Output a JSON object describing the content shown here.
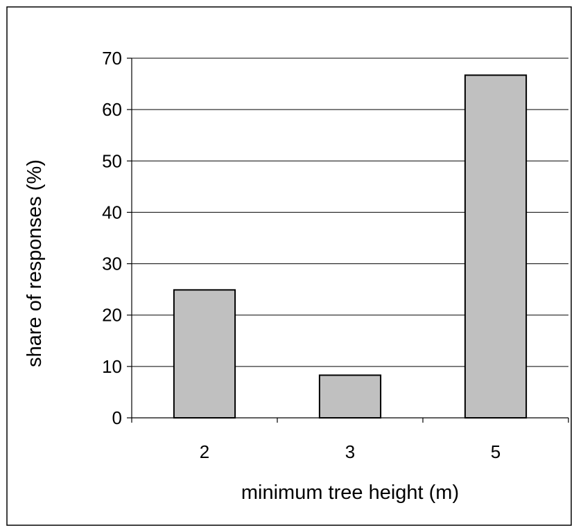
{
  "chart_data": {
    "type": "bar",
    "categories": [
      "2",
      "3",
      "5"
    ],
    "values": [
      24.9,
      8.3,
      66.7
    ],
    "title": "",
    "xlabel": "minimum tree height (m)",
    "ylabel": "share of responses (%)",
    "ylim": [
      0,
      70
    ],
    "yticks": [
      "0",
      "10",
      "20",
      "30",
      "40",
      "50",
      "60",
      "70"
    ],
    "grid": true,
    "legend": "none",
    "bar_color": "#c0c0c0",
    "bar_edge_color": "#000000",
    "gridline_color": "#000000"
  }
}
